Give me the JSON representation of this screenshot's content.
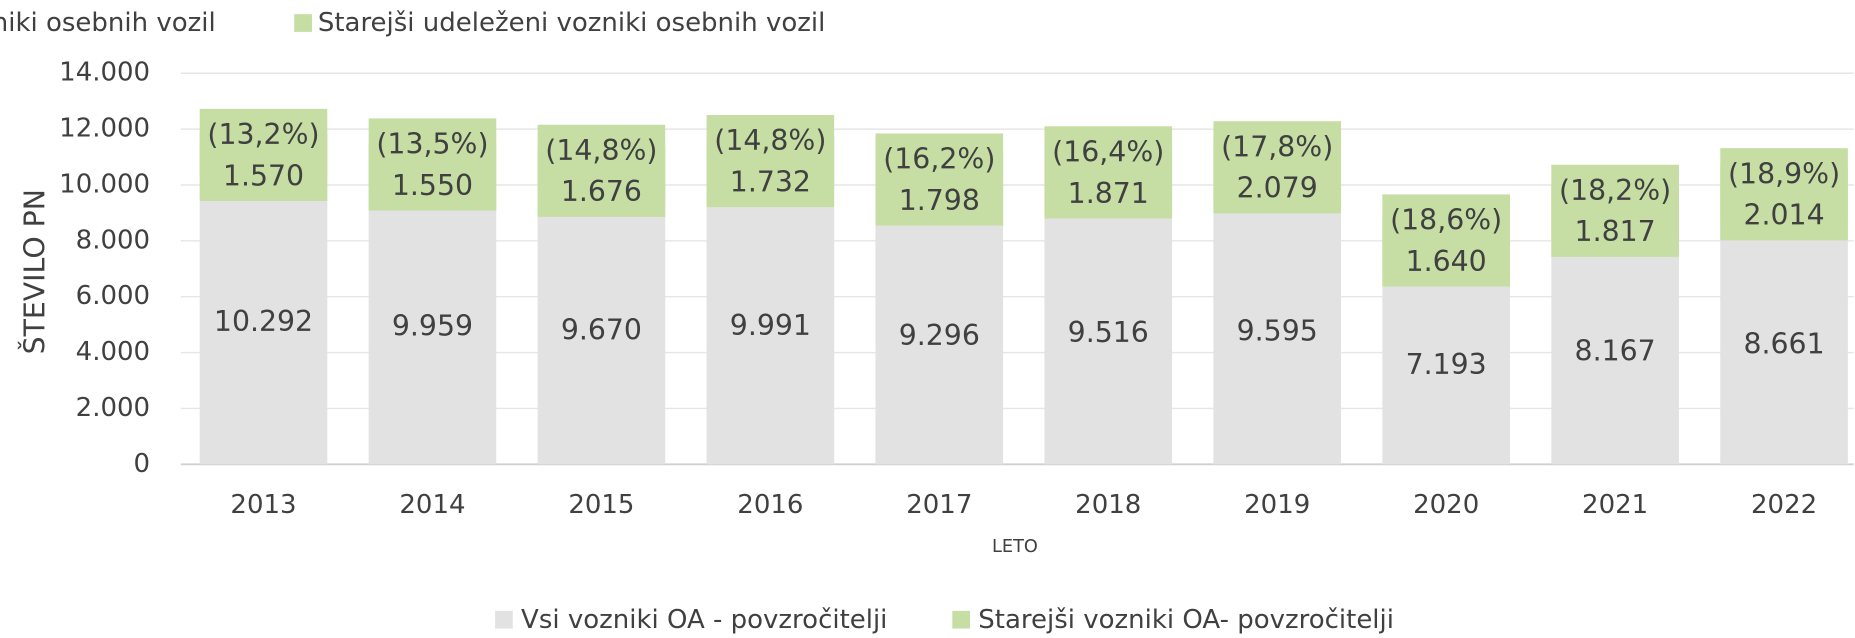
{
  "chart_data": {
    "type": "stacked_bar",
    "top_legend": [
      "niki osebnih vozil",
      "Starejši udeleženi vozniki osebnih vozil"
    ],
    "top_legend_colors": [
      "#e2e2e2",
      "#c6dea4"
    ],
    "y_label": "ŠTEVILO PN",
    "x_label": "LETO",
    "categories": [
      "2013",
      "2014",
      "2015",
      "2016",
      "2017",
      "2018",
      "2019",
      "2020",
      "2021",
      "2022"
    ],
    "series": [
      {
        "name": "Vsi vozniki OA - povzročitelji",
        "color": "#e2e2e2",
        "values": [
          10292,
          9959,
          9670,
          9991,
          9296,
          9516,
          9595,
          7193,
          8167,
          8661
        ],
        "value_labels": [
          "10.292",
          "9.959",
          "9.670",
          "9.991",
          "9.296",
          "9.516",
          "9.595",
          "7.193",
          "8.167",
          "8.661"
        ]
      },
      {
        "name": "Starejši vozniki OA- povzročitelji",
        "color": "#c6dea4",
        "values": [
          1570,
          1550,
          1676,
          1732,
          1798,
          1871,
          2079,
          1640,
          1817,
          2014
        ],
        "value_labels": [
          "1.570",
          "1.550",
          "1.676",
          "1.732",
          "1.798",
          "1.871",
          "2.079",
          "1.640",
          "1.817",
          "2.014"
        ],
        "percent_labels": [
          "(13,2%)",
          "(13,5%)",
          "(14,8%)",
          "(14,8%)",
          "(16,2%)",
          "(16,4%)",
          "(17,8%)",
          "(18,6%)",
          "(18,2%)",
          "(18,9%)"
        ]
      }
    ],
    "ylim": [
      0,
      14000
    ],
    "yticks": [
      0,
      {
        "value": 2000,
        "label": "2.000"
      },
      {
        "value": 4000,
        "label": "4.000"
      },
      {
        "value": 6000,
        "label": "6.000"
      },
      {
        "value": 8000,
        "label": "8.000"
      },
      {
        "value": 10000,
        "label": "10.000"
      },
      {
        "value": 12000,
        "label": "12.000"
      },
      {
        "value": 14000,
        "label": "14.000"
      }
    ],
    "grid": true
  }
}
